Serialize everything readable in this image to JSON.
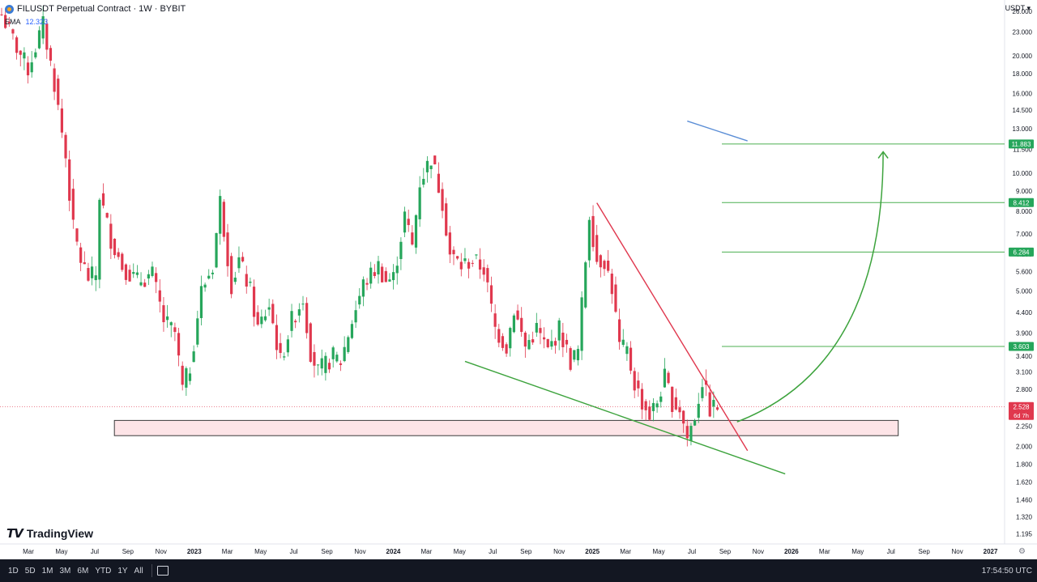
{
  "header": {
    "title": "FILUSDT Perpetual Contract · 1W · BYBIT"
  },
  "indicator": {
    "name": "EMA",
    "value": "12.323"
  },
  "currency": "USDT ▾",
  "brand": "TradingView",
  "bottombar": {
    "ranges": [
      "1D",
      "5D",
      "1M",
      "3M",
      "6M",
      "YTD",
      "1Y",
      "All"
    ],
    "time": "17:54:50 UTC"
  },
  "colors": {
    "up": "#26a65b",
    "down": "#e0384e",
    "zone_fill": "#fde4e7",
    "trend_red": "#e0384e",
    "trend_green": "#3da33d",
    "blue_line": "#5b8ed6"
  },
  "chart_data": {
    "type": "candlestick",
    "symbol": "FILUSDT",
    "interval": "1W",
    "exchange": "BYBIT",
    "y_scale": "log",
    "ylim": [
      1.18,
      27.5
    ],
    "y_ticks": [
      "26.000",
      "23.000",
      "20.000",
      "18.000",
      "16.000",
      "14.500",
      "13.000",
      "11.500",
      "10.000",
      "9.000",
      "8.000",
      "7.000",
      "6.200",
      "5.600",
      "5.000",
      "4.400",
      "3.900",
      "3.400",
      "3.100",
      "2.800",
      "2.500",
      "2.250",
      "2.000",
      "1.800",
      "1.620",
      "1.460",
      "1.320",
      "1.195"
    ],
    "x_ticks": [
      "Mar",
      "May",
      "Jul",
      "Sep",
      "Nov",
      "2023",
      "Mar",
      "May",
      "Jul",
      "Sep",
      "Nov",
      "2024",
      "Mar",
      "May",
      "Jul",
      "Sep",
      "Nov",
      "2025",
      "Mar",
      "May",
      "Jul",
      "Sep",
      "Nov",
      "2026",
      "Mar",
      "May",
      "Jul",
      "Sep",
      "Nov",
      "2027"
    ],
    "price_labels": [
      {
        "text": "11.883",
        "value": 11.883,
        "color": "#26a65b"
      },
      {
        "text": "8.412",
        "value": 8.412,
        "color": "#26a65b"
      },
      {
        "text": "6.284",
        "value": 6.284,
        "color": "#26a65b"
      },
      {
        "text": "3.603",
        "value": 3.603,
        "color": "#26a65b"
      },
      {
        "text": "2.528",
        "value": 2.528,
        "color": "#e0384e"
      }
    ],
    "countdown": "6d 7h",
    "current_price": 2.528,
    "key_points": [
      [
        0,
        25.5
      ],
      [
        4,
        21.0
      ],
      [
        7,
        18.5
      ],
      [
        11,
        24.0
      ],
      [
        14,
        17.0
      ],
      [
        17,
        11.0
      ],
      [
        19,
        7.2
      ],
      [
        21,
        6.0
      ],
      [
        23,
        5.4
      ],
      [
        25,
        5.5
      ],
      [
        26,
        8.8
      ],
      [
        29,
        6.8
      ],
      [
        32,
        5.8
      ],
      [
        36,
        5.3
      ],
      [
        40,
        5.5
      ],
      [
        43,
        4.2
      ],
      [
        46,
        3.9
      ],
      [
        48,
        2.8
      ],
      [
        50,
        3.2
      ],
      [
        53,
        5.0
      ],
      [
        56,
        5.8
      ],
      [
        58,
        8.5
      ],
      [
        61,
        5.2
      ],
      [
        63,
        6.0
      ],
      [
        66,
        5.0
      ],
      [
        68,
        4.0
      ],
      [
        71,
        4.6
      ],
      [
        74,
        3.3
      ],
      [
        77,
        4.2
      ],
      [
        80,
        4.8
      ],
      [
        82,
        3.5
      ],
      [
        84,
        3.1
      ],
      [
        88,
        3.4
      ],
      [
        90,
        3.3
      ],
      [
        93,
        4.2
      ],
      [
        96,
        5.2
      ],
      [
        100,
        5.8
      ],
      [
        102,
        5.3
      ],
      [
        104,
        5.4
      ],
      [
        107,
        7.8
      ],
      [
        109,
        6.5
      ],
      [
        111,
        9.5
      ],
      [
        114,
        11.0
      ],
      [
        117,
        8.5
      ],
      [
        119,
        6.2
      ],
      [
        122,
        5.8
      ],
      [
        125,
        6.0
      ],
      [
        128,
        5.7
      ],
      [
        131,
        4.0
      ],
      [
        134,
        3.6
      ],
      [
        136,
        4.5
      ],
      [
        139,
        3.6
      ],
      [
        142,
        4.0
      ],
      [
        145,
        3.5
      ],
      [
        148,
        4.0
      ],
      [
        151,
        3.3
      ],
      [
        153,
        3.5
      ],
      [
        156,
        7.9
      ],
      [
        158,
        6.0
      ],
      [
        160,
        6.0
      ],
      [
        162,
        5.1
      ],
      [
        164,
        3.6
      ],
      [
        166,
        3.5
      ],
      [
        168,
        2.9
      ],
      [
        170,
        2.6
      ],
      [
        172,
        2.4
      ],
      [
        174,
        2.6
      ],
      [
        176,
        3.0
      ],
      [
        178,
        2.6
      ],
      [
        180,
        2.5
      ],
      [
        182,
        2.1
      ],
      [
        184,
        2.4
      ],
      [
        186,
        2.95
      ],
      [
        188,
        2.5
      ],
      [
        190,
        2.528
      ]
    ],
    "support_zone": {
      "low": 2.13,
      "high": 2.33,
      "from_week": 48,
      "to_week": 238
    },
    "target_lines": [
      11.883,
      8.412,
      6.284,
      3.603
    ],
    "trendlines": [
      {
        "color": "red",
        "from": [
          158,
          8.4
        ],
        "to": [
          198,
          1.95
        ]
      },
      {
        "color": "green",
        "from": [
          123,
          3.3
        ],
        "to": [
          208,
          1.7
        ]
      },
      {
        "color": "blue",
        "from": [
          182,
          13.6
        ],
        "to": [
          198,
          12.1
        ]
      }
    ],
    "projection_arrow": {
      "from": [
        195,
        2.31
      ],
      "to": [
        234,
        11.35
      ]
    }
  }
}
